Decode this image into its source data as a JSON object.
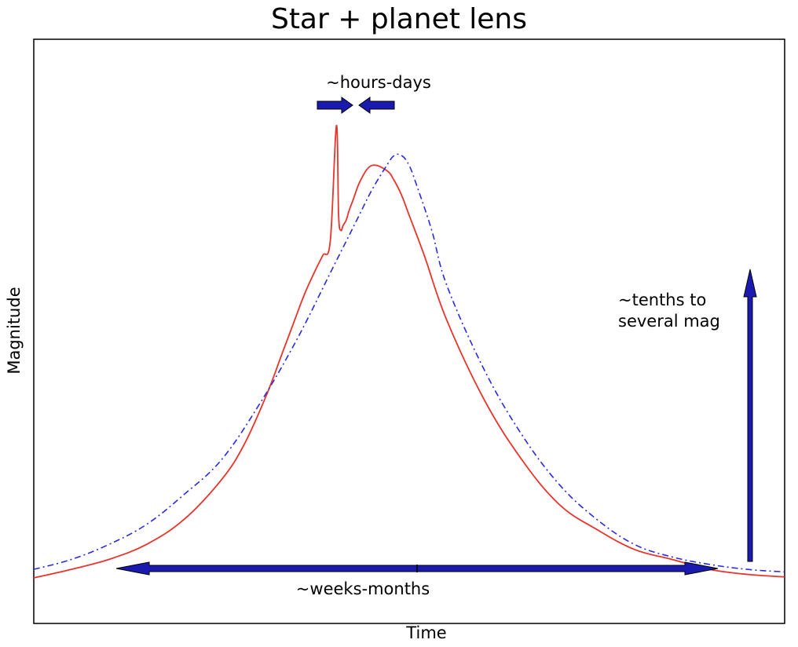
{
  "chart_data": {
    "type": "line",
    "title": "Star + planet lens",
    "xlabel": "Time",
    "ylabel": "Magnitude",
    "xlim": [
      0,
      1
    ],
    "ylim": [
      0,
      1
    ],
    "grid": false,
    "ticks": "none",
    "series": [
      {
        "style": "solid",
        "color": "#e8342a",
        "x": [
          0.0,
          0.05,
          0.1,
          0.15,
          0.2,
          0.25,
          0.28,
          0.31,
          0.33,
          0.345,
          0.36,
          0.375,
          0.385,
          0.395,
          0.403,
          0.406,
          0.409,
          0.412,
          0.416,
          0.42,
          0.425,
          0.435,
          0.45,
          0.47,
          0.48,
          0.49,
          0.5,
          0.52,
          0.55,
          0.6,
          0.65,
          0.7,
          0.75,
          0.8,
          0.85,
          0.9,
          0.95,
          1.0
        ],
        "y": [
          0.093,
          0.11,
          0.13,
          0.16,
          0.21,
          0.29,
          0.36,
          0.46,
          0.54,
          0.6,
          0.66,
          0.71,
          0.74,
          0.77,
          1.0,
          0.82,
          0.79,
          0.8,
          0.81,
          0.83,
          0.85,
          0.89,
          0.92,
          0.91,
          0.89,
          0.86,
          0.82,
          0.74,
          0.61,
          0.45,
          0.33,
          0.24,
          0.19,
          0.15,
          0.13,
          0.11,
          0.1,
          0.095
        ]
      },
      {
        "style": "dashdot",
        "color": "#2a2ae0",
        "x": [
          0.0,
          0.05,
          0.1,
          0.15,
          0.2,
          0.25,
          0.3,
          0.35,
          0.4,
          0.43,
          0.45,
          0.47,
          0.48,
          0.49,
          0.5,
          0.51,
          0.53,
          0.55,
          0.6,
          0.65,
          0.7,
          0.75,
          0.8,
          0.85,
          0.9,
          0.95,
          1.0
        ],
        "y": [
          0.11,
          0.13,
          0.16,
          0.2,
          0.26,
          0.33,
          0.44,
          0.57,
          0.72,
          0.81,
          0.87,
          0.92,
          0.94,
          0.94,
          0.92,
          0.88,
          0.79,
          0.68,
          0.51,
          0.38,
          0.28,
          0.21,
          0.16,
          0.135,
          0.12,
          0.11,
          0.105
        ]
      }
    ],
    "annotations": [
      {
        "text": "~hours-days",
        "position": "above spike"
      },
      {
        "text": "~tenths to",
        "position": "right"
      },
      {
        "text": "several mag",
        "position": "right"
      },
      {
        "text": "~weeks-months",
        "position": "bottom"
      }
    ],
    "arrow_color": "#1a1ab0"
  }
}
